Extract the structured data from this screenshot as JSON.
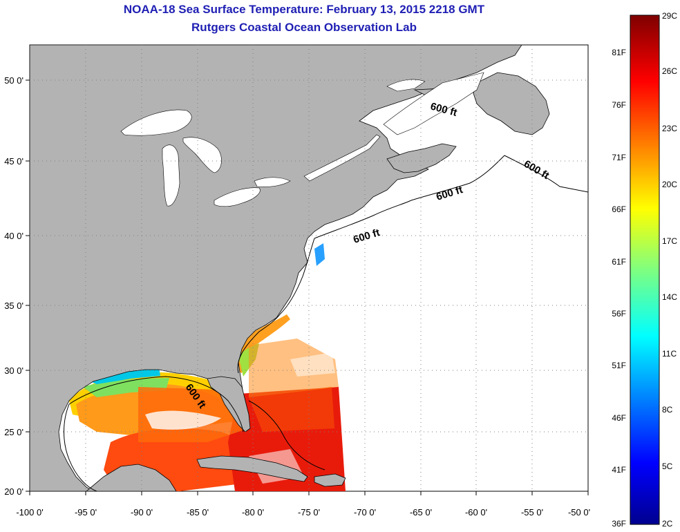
{
  "header": {
    "title": "NOAA-18 Sea Surface Temperature:  February 13, 2015 2218 GMT",
    "subtitle": "Rutgers Coastal Ocean Observation Lab"
  },
  "map": {
    "lon_ticks": [
      "-100 0'",
      "-95 0'",
      "-90 0'",
      "-85 0'",
      "-80 0'",
      "-75 0'",
      "-70 0'",
      "-65 0'",
      "-60 0'",
      "-55 0'",
      "-50 0'"
    ],
    "lat_ticks": [
      "50 0'",
      "45 0'",
      "40 0'",
      "35 0'",
      "30 0'",
      "25 0'",
      "20 0'"
    ],
    "isobath_labels": [
      "600 ft",
      "600 ft",
      "600 ft",
      "600 ft",
      "600 ft"
    ],
    "colors": {
      "land": "#b3b3b3",
      "ocean_no_data": "#ffffff",
      "title": "#1f1fb4",
      "grid": "#7f7f7f"
    }
  },
  "colorbar": {
    "fahrenheit": [
      "81F",
      "76F",
      "71F",
      "66F",
      "61F",
      "56F",
      "51F",
      "46F",
      "41F",
      "36F"
    ],
    "celsius": [
      "29C",
      "26C",
      "23C",
      "20C",
      "17C",
      "14C",
      "11C",
      "8C",
      "5C",
      "2C"
    ]
  }
}
